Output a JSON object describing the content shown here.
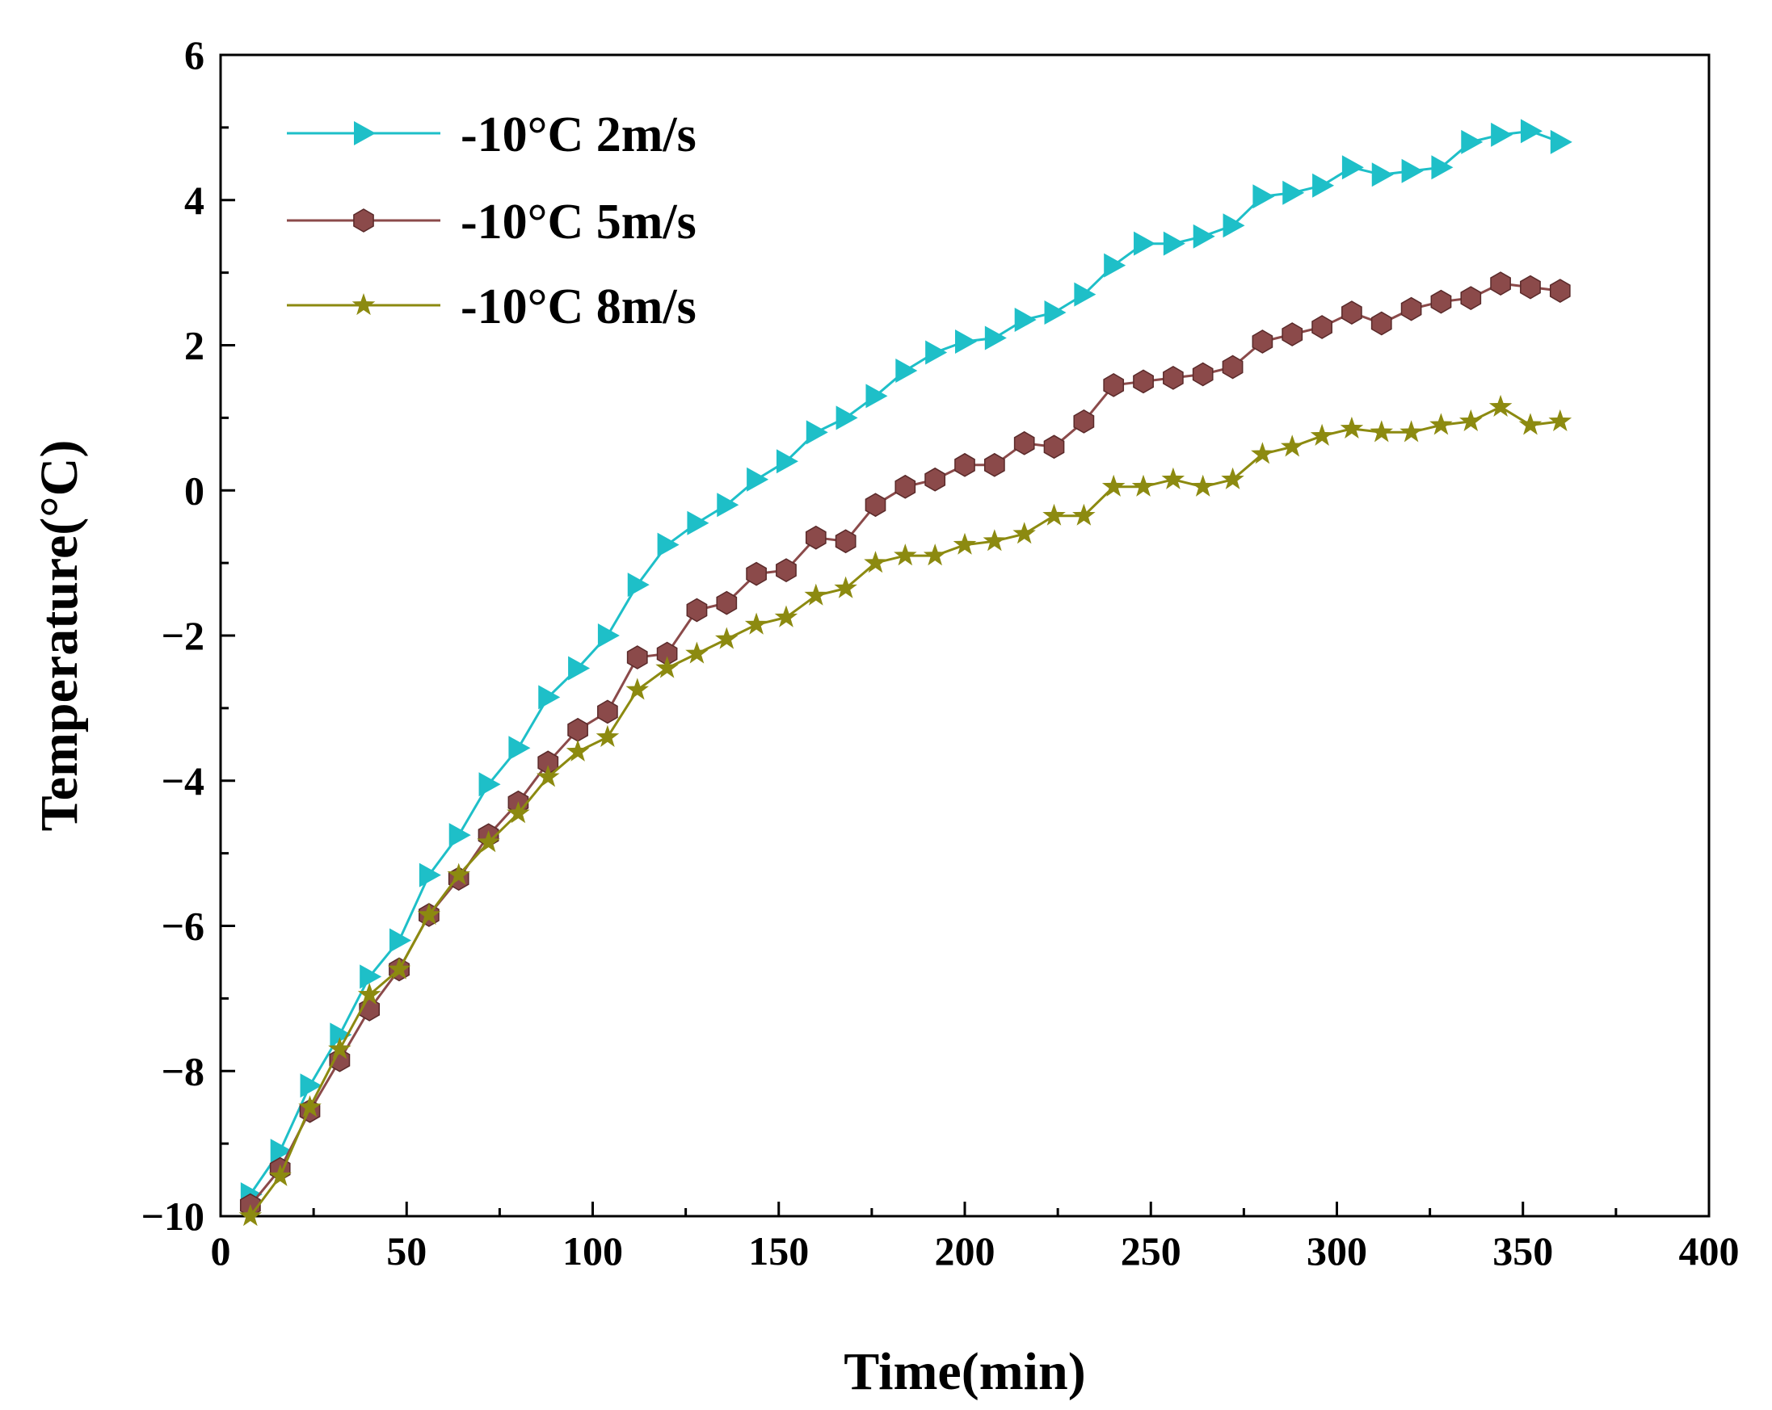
{
  "chart_data": {
    "type": "line",
    "xlabel": "Time(min)",
    "ylabel": "Temperature(°C)",
    "xlim": [
      0,
      400
    ],
    "ylim": [
      -10,
      6
    ],
    "xticks": [
      0,
      50,
      100,
      150,
      200,
      250,
      300,
      350,
      400
    ],
    "yticks": [
      -10,
      -8,
      -6,
      -4,
      -2,
      0,
      2,
      4,
      6
    ],
    "xtick_labels": [
      "0",
      "50",
      "100",
      "150",
      "200",
      "250",
      "300",
      "350",
      "400"
    ],
    "ytick_labels": [
      "−10",
      "−8",
      "−6",
      "−4",
      "−2",
      "0",
      "2",
      "4",
      "6"
    ],
    "grid": false,
    "legend_position": "top-left",
    "x": [
      8,
      16,
      24,
      32,
      40,
      48,
      56,
      64,
      72,
      80,
      88,
      96,
      104,
      112,
      120,
      128,
      136,
      144,
      152,
      160,
      168,
      176,
      184,
      192,
      200,
      208,
      216,
      224,
      232,
      240,
      248,
      256,
      264,
      272,
      280,
      288,
      296,
      304,
      312,
      320,
      328,
      336,
      344,
      352,
      360
    ],
    "series": [
      {
        "name": "-10°C 2m/s",
        "color": "#1ebfc8",
        "marker": "triangle-right",
        "values": [
          -9.7,
          -9.1,
          -8.2,
          -7.5,
          -6.7,
          -6.2,
          -5.3,
          -4.75,
          -4.05,
          -3.55,
          -2.85,
          -2.45,
          -2.0,
          -1.3,
          -0.75,
          -0.45,
          -0.2,
          0.15,
          0.4,
          0.8,
          1.0,
          1.3,
          1.65,
          1.9,
          2.05,
          2.1,
          2.35,
          2.45,
          2.7,
          3.1,
          3.4,
          3.4,
          3.5,
          3.65,
          4.05,
          4.1,
          4.2,
          4.45,
          4.35,
          4.4,
          4.45,
          4.8,
          4.9,
          4.95,
          4.8
        ]
      },
      {
        "name": "-10°C 5m/s",
        "color": "#8b4a4a",
        "marker": "hexagon",
        "values": [
          -9.85,
          -9.35,
          -8.55,
          -7.85,
          -7.15,
          -6.6,
          -5.85,
          -5.35,
          -4.75,
          -4.3,
          -3.75,
          -3.3,
          -3.05,
          -2.3,
          -2.25,
          -1.65,
          -1.55,
          -1.15,
          -1.1,
          -0.65,
          -0.7,
          -0.2,
          0.05,
          0.15,
          0.35,
          0.35,
          0.65,
          0.6,
          0.95,
          1.45,
          1.5,
          1.55,
          1.6,
          1.7,
          2.05,
          2.15,
          2.25,
          2.45,
          2.3,
          2.5,
          2.6,
          2.65,
          2.85,
          2.8,
          2.75
        ]
      },
      {
        "name": "-10°C 8m/s",
        "color": "#8c8a10",
        "marker": "star",
        "values": [
          -10.0,
          -9.45,
          -8.5,
          -7.7,
          -6.95,
          -6.6,
          -5.85,
          -5.3,
          -4.85,
          -4.45,
          -3.95,
          -3.6,
          -3.4,
          -2.75,
          -2.45,
          -2.25,
          -2.05,
          -1.85,
          -1.75,
          -1.45,
          -1.35,
          -1.0,
          -0.9,
          -0.9,
          -0.75,
          -0.7,
          -0.6,
          -0.35,
          -0.35,
          0.05,
          0.05,
          0.15,
          0.05,
          0.15,
          0.5,
          0.6,
          0.75,
          0.85,
          0.8,
          0.8,
          0.9,
          0.95,
          1.15,
          0.9,
          0.95
        ]
      }
    ]
  }
}
